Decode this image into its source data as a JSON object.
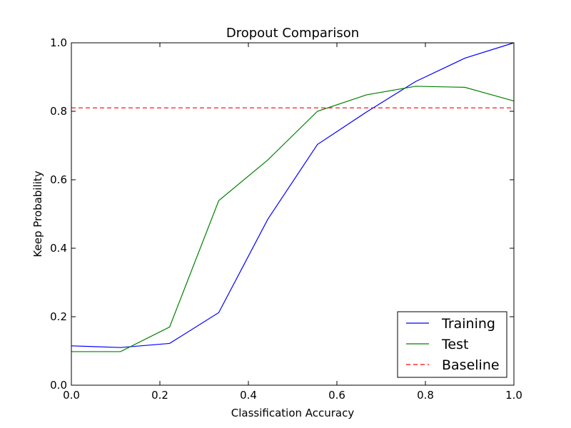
{
  "chart_data": {
    "type": "line",
    "title": "Dropout Comparison",
    "xlabel": "Classification Accuracy",
    "ylabel": "Keep Probability",
    "xlim": [
      0.0,
      1.0
    ],
    "ylim": [
      0.0,
      1.0
    ],
    "xticks": [
      0.0,
      0.2,
      0.4,
      0.6,
      0.8,
      1.0
    ],
    "yticks": [
      0.0,
      0.2,
      0.4,
      0.6,
      0.8,
      1.0
    ],
    "xtick_labels": [
      "0.0",
      "0.2",
      "0.4",
      "0.6",
      "0.8",
      "1.0"
    ],
    "ytick_labels": [
      "0.0",
      "0.2",
      "0.4",
      "0.6",
      "0.8",
      "1.0"
    ],
    "grid": false,
    "legend_position": "lower-right",
    "x": [
      0.0,
      0.111,
      0.222,
      0.333,
      0.444,
      0.556,
      0.667,
      0.778,
      0.889,
      1.0
    ],
    "series": [
      {
        "name": "Training",
        "color": "#0000ff",
        "style": "solid",
        "values": [
          0.115,
          0.11,
          0.122,
          0.212,
          0.485,
          0.703,
          0.798,
          0.887,
          0.955,
          1.0
        ]
      },
      {
        "name": "Test",
        "color": "#008000",
        "style": "solid",
        "values": [
          0.098,
          0.098,
          0.17,
          0.539,
          0.658,
          0.8,
          0.848,
          0.873,
          0.87,
          0.83
        ]
      },
      {
        "name": "Baseline",
        "color": "#ff0000",
        "style": "dashed",
        "values": [
          0.81,
          0.81,
          0.81,
          0.81,
          0.81,
          0.81,
          0.81,
          0.81,
          0.81,
          0.81
        ]
      }
    ]
  }
}
